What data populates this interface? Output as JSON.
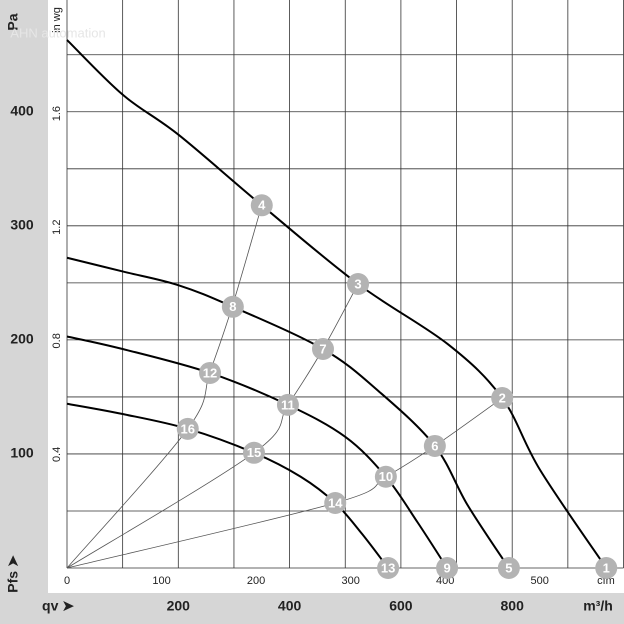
{
  "chart_data": {
    "type": "line",
    "x_label": "qv ➤",
    "x_unit": "m³/h",
    "y_label": "Pa",
    "y_sublabel": "Pfs ➤",
    "x2_unit": "cfm",
    "y2_unit": "in wg",
    "watermark": "AHN automation",
    "xlim": [
      0,
      1000
    ],
    "xticks": [
      200,
      400,
      600,
      800
    ],
    "x2lim": [
      0,
      588.6
    ],
    "x2ticks": [
      0,
      100,
      200,
      300,
      400,
      500
    ],
    "ylim": [
      0,
      498
    ],
    "yticks": [
      100,
      200,
      300,
      400
    ],
    "y2lim": [
      0,
      2.0
    ],
    "y2ticks": [
      0.4,
      0.8,
      1.2,
      1.6
    ],
    "xgrid": [
      0,
      100,
      200,
      300,
      400,
      500,
      600,
      700,
      800,
      900,
      1000
    ],
    "ygrid": [
      0,
      50,
      100,
      150,
      200,
      250,
      300,
      350,
      400,
      450
    ],
    "series": [
      {
        "color": "#000000",
        "x": [
          0,
          100,
          200,
          350,
          523,
          685,
          782,
          850,
          969
        ],
        "values": [
          463,
          415,
          380,
          318,
          249,
          196,
          149,
          86,
          0
        ]
      },
      {
        "color": "#000000",
        "x": [
          0,
          100,
          200,
          298,
          460,
          560,
          661,
          720,
          794
        ],
        "values": [
          272,
          260,
          248,
          229,
          192,
          155,
          107,
          55,
          0
        ]
      },
      {
        "color": "#000000",
        "x": [
          0,
          100,
          257,
          397,
          500,
          573,
          630,
          683
        ],
        "values": [
          203,
          192,
          171,
          143,
          115,
          80,
          40,
          0
        ]
      },
      {
        "color": "#000000",
        "x": [
          0,
          100,
          217,
          336,
          420,
          482,
          530,
          577
        ],
        "values": [
          144,
          135,
          122,
          101,
          80,
          57,
          30,
          0
        ]
      }
    ],
    "system_curves": [
      {
        "color": "#555555",
        "x": [
          0,
          217,
          257,
          298,
          350
        ],
        "values": [
          0,
          122,
          172,
          231,
          318
        ]
      },
      {
        "color": "#555555",
        "x": [
          0,
          336,
          397,
          460,
          523
        ],
        "values": [
          0,
          101,
          143,
          192,
          249
        ]
      },
      {
        "color": "#555555",
        "x": [
          0,
          482,
          573,
          661,
          782
        ],
        "values": [
          0,
          57,
          80,
          107,
          149
        ]
      }
    ],
    "points": [
      {
        "label": "1",
        "x": 969,
        "y": 0
      },
      {
        "label": "2",
        "x": 782,
        "y": 149
      },
      {
        "label": "3",
        "x": 523,
        "y": 249
      },
      {
        "label": "4",
        "x": 350,
        "y": 318
      },
      {
        "label": "5",
        "x": 794,
        "y": 0
      },
      {
        "label": "6",
        "x": 661,
        "y": 107
      },
      {
        "label": "7",
        "x": 460,
        "y": 192
      },
      {
        "label": "8",
        "x": 298,
        "y": 229
      },
      {
        "label": "9",
        "x": 683,
        "y": 0
      },
      {
        "label": "10",
        "x": 573,
        "y": 80
      },
      {
        "label": "11",
        "x": 397,
        "y": 143
      },
      {
        "label": "12",
        "x": 257,
        "y": 171
      },
      {
        "label": "13",
        "x": 577,
        "y": 0
      },
      {
        "label": "14",
        "x": 482,
        "y": 57
      },
      {
        "label": "15",
        "x": 336,
        "y": 101
      },
      {
        "label": "16",
        "x": 217,
        "y": 122
      }
    ],
    "point_color": "#b3b3b3"
  }
}
